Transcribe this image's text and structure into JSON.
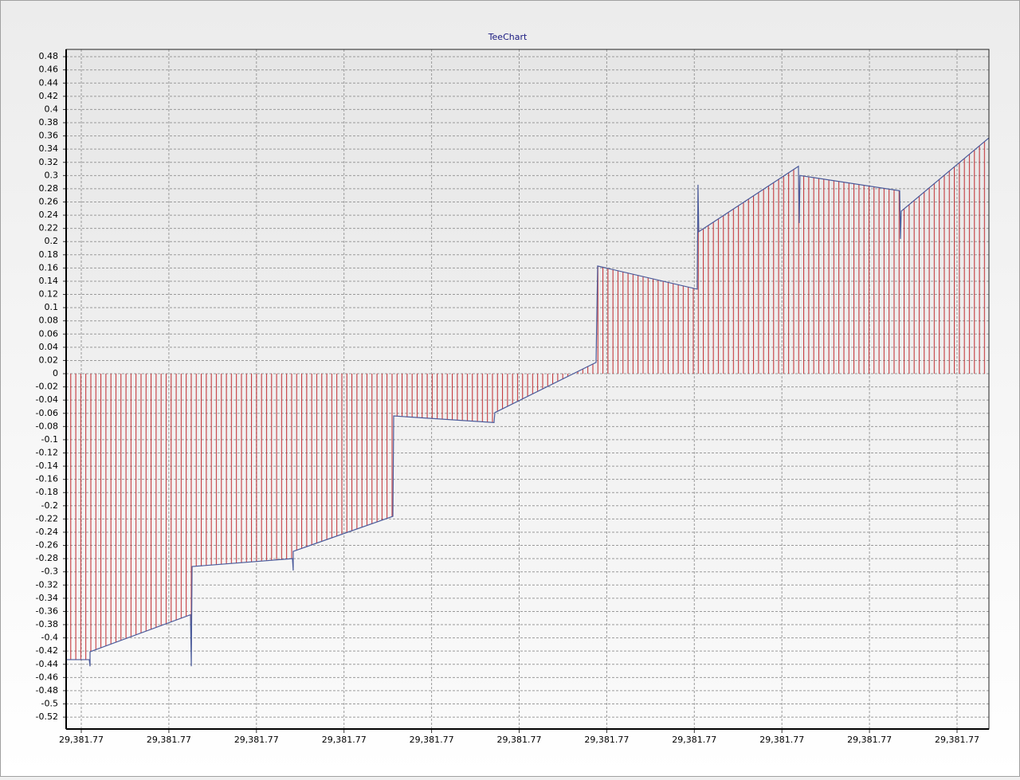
{
  "chart_data": {
    "type": "area",
    "title": "TeeChart",
    "series": [
      {
        "color": "#4a5a9a",
        "fill": "#c0282d",
        "x": [
          -0.173,
          0.091,
          0.1,
          0.1,
          1.247,
          1.256,
          1.265,
          2.411,
          2.42,
          2.42,
          3.558,
          3.567,
          4.713,
          4.722,
          5.878,
          5.896,
          7.033,
          7.042,
          7.051,
          8.189,
          8.198,
          8.207,
          9.345,
          9.354,
          9.363,
          10.364
        ],
        "values": [
          -0.433,
          -0.433,
          -0.443,
          -0.421,
          -0.365,
          -0.443,
          -0.292,
          -0.28,
          -0.298,
          -0.269,
          -0.216,
          -0.064,
          -0.074,
          -0.059,
          0.017,
          0.163,
          0.128,
          0.286,
          0.215,
          0.314,
          0.228,
          0.3,
          0.277,
          0.204,
          0.246,
          0.357
        ]
      }
    ],
    "xlim": [
      -0.173,
      10.364
    ],
    "xticks": [
      {
        "value": 0,
        "label": "29,381.77"
      },
      {
        "value": 1,
        "label": "29,381.77"
      },
      {
        "value": 2,
        "label": "29,381.77"
      },
      {
        "value": 3,
        "label": "29,381.77"
      },
      {
        "value": 4,
        "label": "29,381.77"
      },
      {
        "value": 5,
        "label": "29,381.77"
      },
      {
        "value": 6,
        "label": "29,381.77"
      },
      {
        "value": 7,
        "label": "29,381.77"
      },
      {
        "value": 8,
        "label": "29,381.77"
      },
      {
        "value": 9,
        "label": "29,381.77"
      },
      {
        "value": 10,
        "label": "29,381.77"
      }
    ],
    "ylim": [
      -0.538,
      0.491
    ],
    "yticks": [
      -0.52,
      -0.5,
      -0.48,
      -0.46,
      -0.44,
      -0.42,
      -0.4,
      -0.38,
      -0.36,
      -0.34,
      -0.32,
      -0.3,
      -0.28,
      -0.26,
      -0.24,
      -0.22,
      -0.2,
      -0.18,
      -0.16,
      -0.14,
      -0.12,
      -0.1,
      -0.08,
      -0.06,
      -0.04,
      -0.02,
      0,
      0.02,
      0.04,
      0.06,
      0.08,
      0.1,
      0.12,
      0.14,
      0.16,
      0.18,
      0.2,
      0.22,
      0.24,
      0.26,
      0.28,
      0.3,
      0.32,
      0.34,
      0.36,
      0.38,
      0.4,
      0.42,
      0.44,
      0.46,
      0.48
    ],
    "grid": true
  }
}
